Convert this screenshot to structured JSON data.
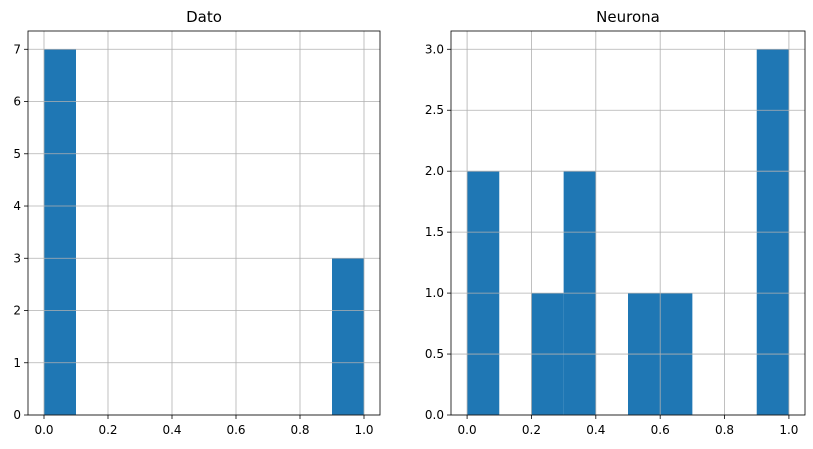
{
  "chart_data": [
    {
      "type": "bar",
      "title": "Dato",
      "xlabel": "",
      "ylabel": "",
      "bin_edges": [
        0.0,
        0.1,
        0.2,
        0.3,
        0.4,
        0.5,
        0.6,
        0.7,
        0.8,
        0.9,
        1.0
      ],
      "values": [
        7,
        0,
        0,
        0,
        0,
        0,
        0,
        0,
        0,
        3
      ],
      "xlim": [
        -0.05,
        1.05
      ],
      "ylim": [
        0,
        7.35
      ],
      "xticks": [
        0.0,
        0.2,
        0.4,
        0.6,
        0.8,
        1.0
      ],
      "xtick_labels": [
        "0.0",
        "0.2",
        "0.4",
        "0.6",
        "0.8",
        "1.0"
      ],
      "yticks": [
        0,
        1,
        2,
        3,
        4,
        5,
        6,
        7
      ],
      "ytick_labels": [
        "0",
        "1",
        "2",
        "3",
        "4",
        "5",
        "6",
        "7"
      ],
      "grid": true
    },
    {
      "type": "bar",
      "title": "Neurona",
      "xlabel": "",
      "ylabel": "",
      "bin_edges": [
        0.0,
        0.1,
        0.2,
        0.3,
        0.4,
        0.5,
        0.6,
        0.7,
        0.8,
        0.9,
        1.0
      ],
      "values": [
        2,
        0,
        1,
        2,
        0,
        1,
        1,
        0,
        0,
        3
      ],
      "xlim": [
        -0.05,
        1.05
      ],
      "ylim": [
        0,
        3.15
      ],
      "xticks": [
        0.0,
        0.2,
        0.4,
        0.6,
        0.8,
        1.0
      ],
      "xtick_labels": [
        "0.0",
        "0.2",
        "0.4",
        "0.6",
        "0.8",
        "1.0"
      ],
      "yticks": [
        0.0,
        0.5,
        1.0,
        1.5,
        2.0,
        2.5,
        3.0
      ],
      "ytick_labels": [
        "0.0",
        "0.5",
        "1.0",
        "1.5",
        "2.0",
        "2.5",
        "3.0"
      ],
      "grid": true
    }
  ],
  "colors": {
    "bar_fill": "#1f77b4",
    "grid": "#b0b0b0",
    "axis": "#000000",
    "background": "#ffffff"
  }
}
